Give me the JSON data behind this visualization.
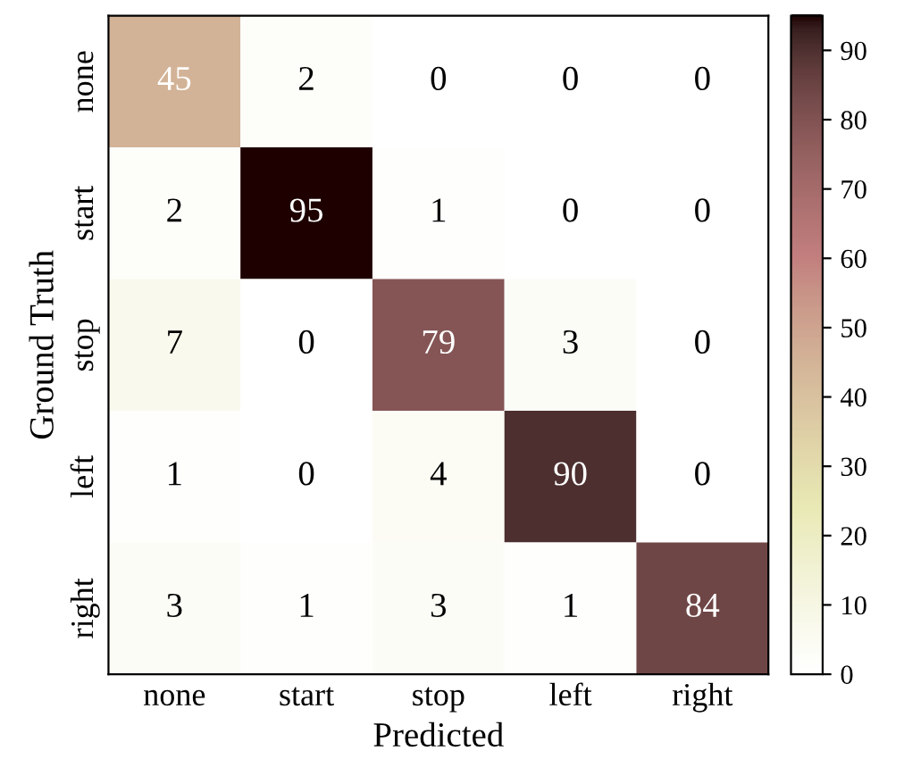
{
  "chart_data": {
    "type": "heatmap",
    "xlabel": "Predicted",
    "ylabel": "Ground Truth",
    "categories": [
      "none",
      "start",
      "stop",
      "left",
      "right"
    ],
    "y_categories": [
      "none",
      "start",
      "stop",
      "left",
      "right"
    ],
    "cells": [
      [
        45,
        2,
        0,
        0,
        0
      ],
      [
        2,
        95,
        1,
        0,
        0
      ],
      [
        7,
        0,
        79,
        3,
        0
      ],
      [
        1,
        0,
        4,
        90,
        0
      ],
      [
        3,
        1,
        3,
        1,
        84
      ]
    ],
    "clim": [
      0,
      95
    ],
    "cticks": [
      0,
      10,
      20,
      30,
      40,
      50,
      60,
      70,
      80,
      90
    ],
    "data_labels": true,
    "grid": false
  }
}
